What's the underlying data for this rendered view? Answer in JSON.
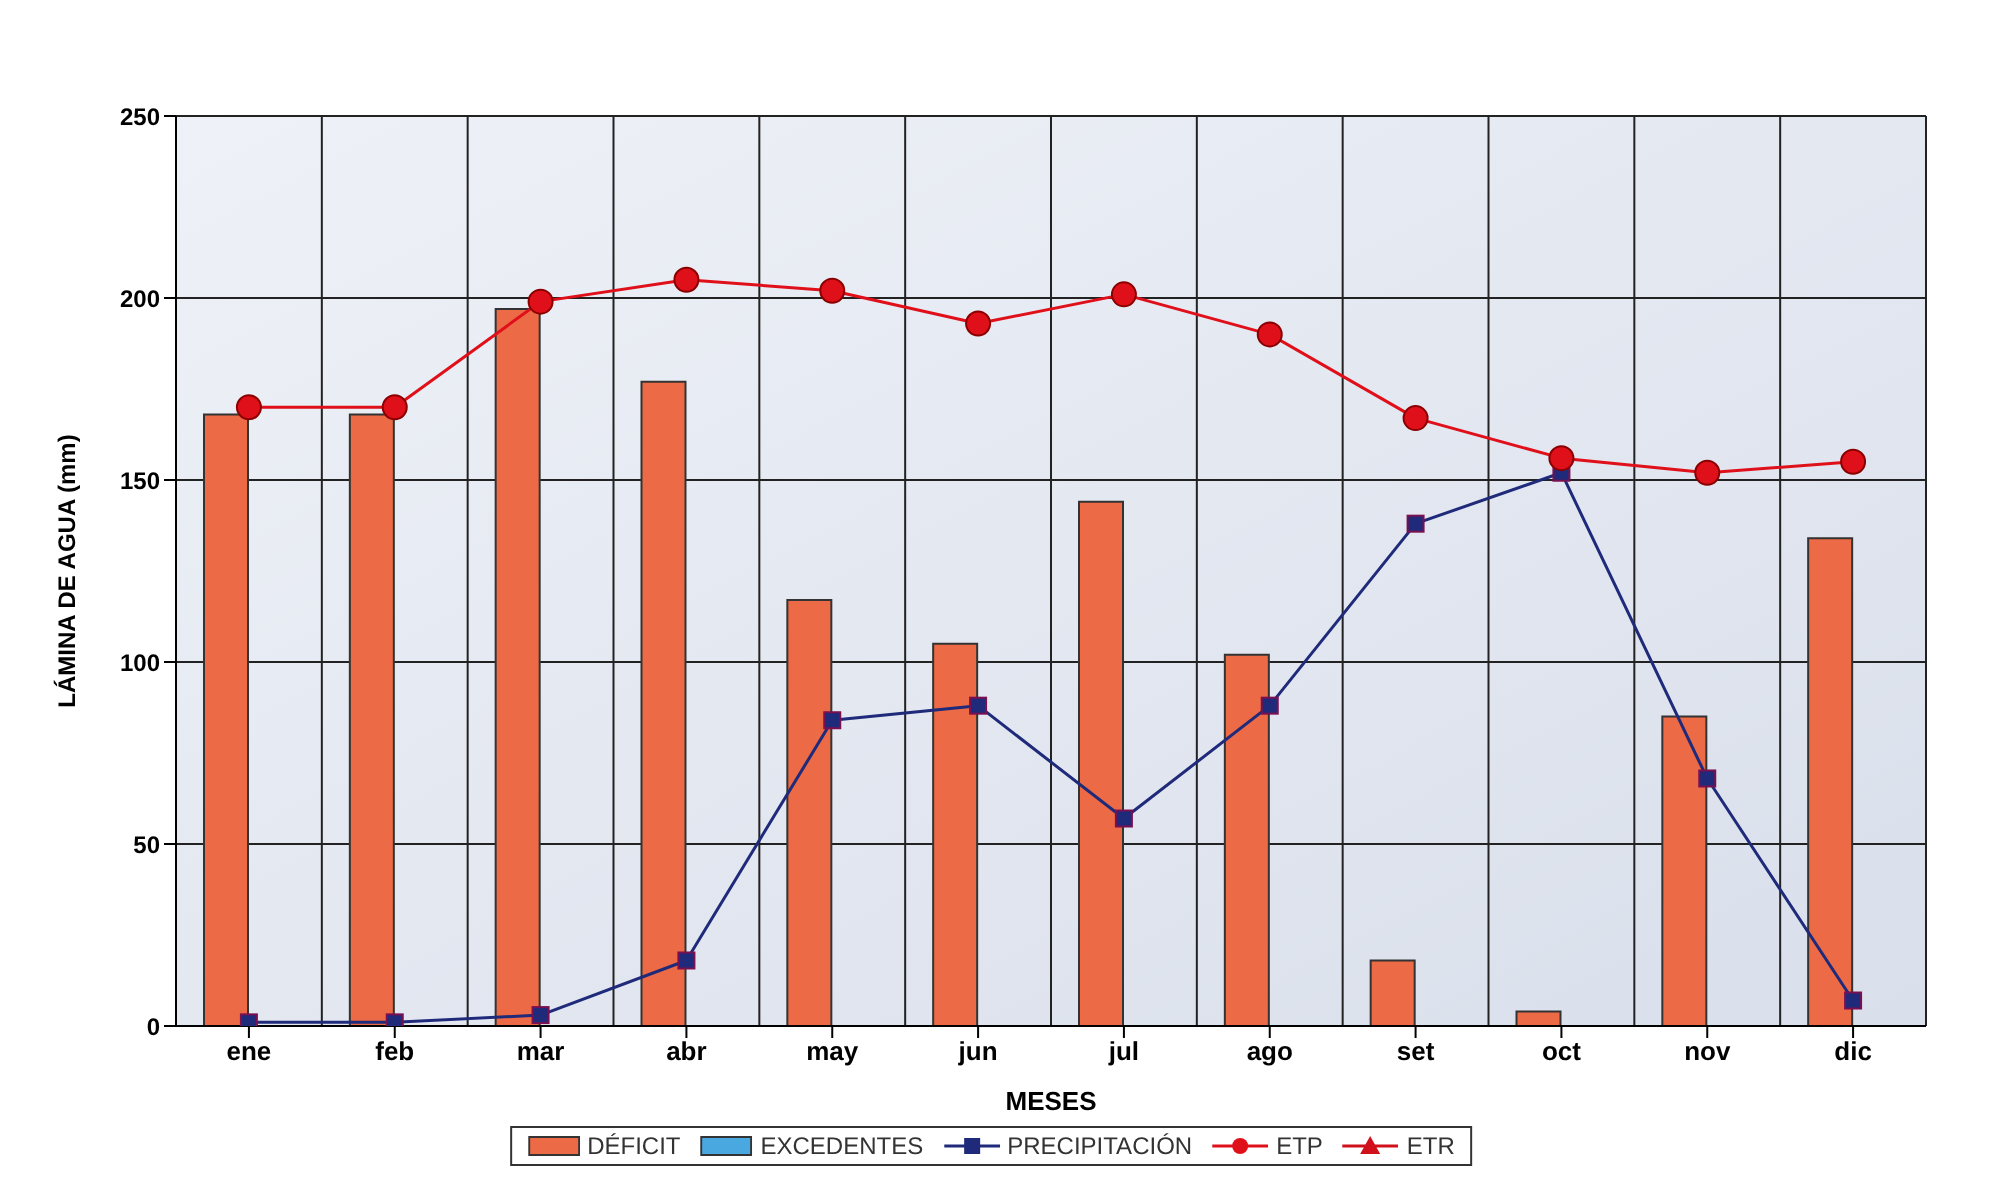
{
  "chart_data": {
    "type": "bar",
    "xlabel": "MESES",
    "ylabel": "LÁMINA DE AGUA (mm)",
    "categories": [
      "ene",
      "feb",
      "mar",
      "abr",
      "may",
      "jun",
      "jul",
      "ago",
      "set",
      "oct",
      "nov",
      "dic"
    ],
    "series": [
      {
        "name": "DÉFICIT",
        "color": "#ec6a45",
        "values": [
          168,
          168,
          197,
          177,
          117,
          105,
          144,
          102,
          18,
          4,
          85,
          134
        ]
      },
      {
        "name": "EXCEDENTES",
        "color": "#4aa8e0",
        "values": [
          null,
          null,
          null,
          null,
          null,
          null,
          null,
          null,
          null,
          null,
          null,
          null
        ]
      },
      {
        "name": "PRECIPITACIÓN",
        "type": "line",
        "color": "#1f2a7a",
        "marker": "square",
        "values": [
          1,
          1,
          3,
          18,
          84,
          88,
          57,
          88,
          138,
          152,
          68,
          7
        ]
      },
      {
        "name": "ETP",
        "type": "line",
        "color": "#e0101a",
        "marker": "circle",
        "values": [
          170,
          170,
          199,
          205,
          202,
          193,
          201,
          190,
          167,
          156,
          152,
          155
        ]
      },
      {
        "name": "ETR",
        "type": "line",
        "color": "#d0101a",
        "marker": "triangle",
        "values": [
          null,
          null,
          null,
          null,
          null,
          null,
          null,
          null,
          null,
          null,
          null,
          null
        ]
      }
    ],
    "ylim": [
      0,
      250
    ],
    "yticks": [
      0,
      50,
      100,
      150,
      200,
      250
    ],
    "grid": true,
    "legend": "bottom"
  }
}
